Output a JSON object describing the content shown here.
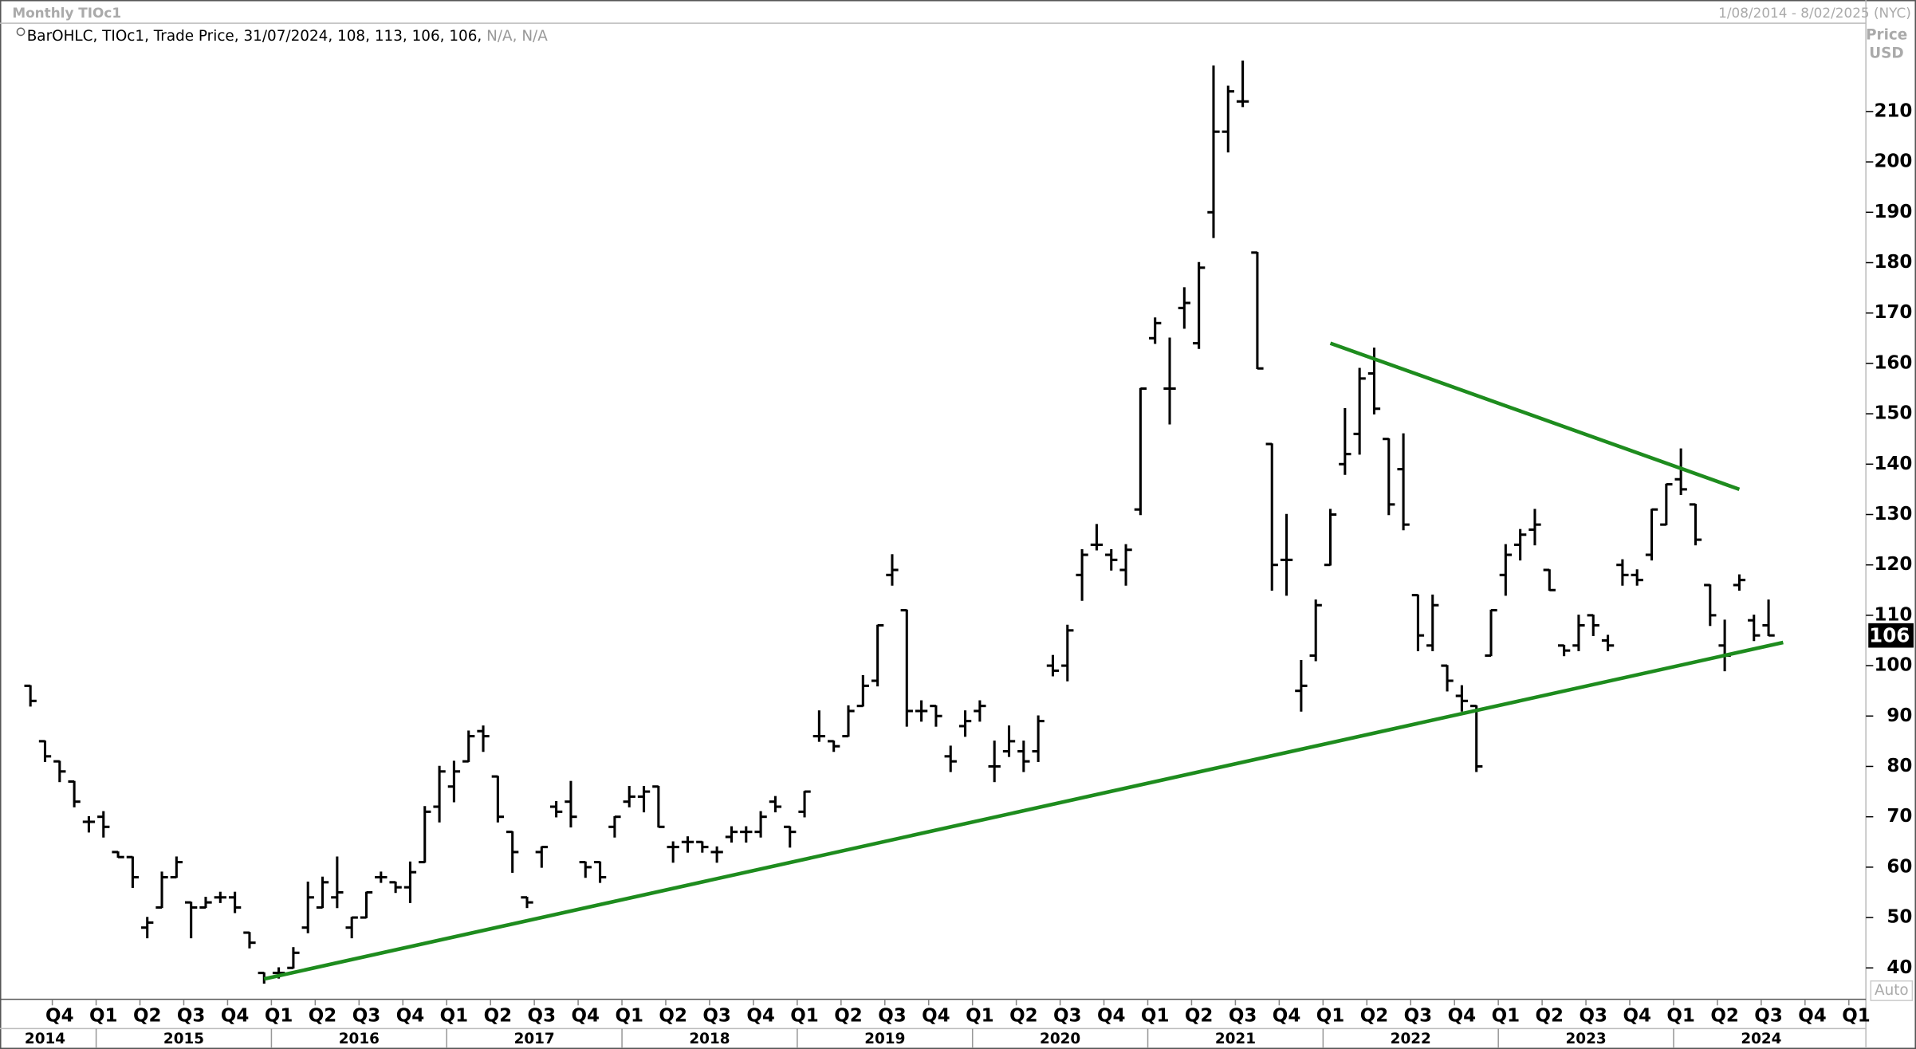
{
  "chart_data": {
    "type": "ohlc",
    "title": "Monthly TIOc1",
    "date_range": "1/08/2014 - 8/02/2025 (NYC)",
    "legend": {
      "items": [
        "BarOHLC",
        "TIOc1",
        "Trade Price",
        "31/07/2024"
      ],
      "separator": ", ",
      "tail": [
        "N/A",
        "N/A"
      ]
    },
    "y_axis_label": [
      "Price",
      "USD"
    ],
    "scale_mode": "Auto",
    "x": [
      "2014-08",
      "2014-09",
      "2014-10",
      "2014-11",
      "2014-12",
      "2015-01",
      "2015-02",
      "2015-03",
      "2015-04",
      "2015-05",
      "2015-06",
      "2015-07",
      "2015-08",
      "2015-09",
      "2015-10",
      "2015-11",
      "2015-12",
      "2016-01",
      "2016-02",
      "2016-03",
      "2016-04",
      "2016-05",
      "2016-06",
      "2016-07",
      "2016-08",
      "2016-09",
      "2016-10",
      "2016-11",
      "2016-12",
      "2017-01",
      "2017-02",
      "2017-03",
      "2017-04",
      "2017-05",
      "2017-06",
      "2017-07",
      "2017-08",
      "2017-09",
      "2017-10",
      "2017-11",
      "2017-12",
      "2018-01",
      "2018-02",
      "2018-03",
      "2018-04",
      "2018-05",
      "2018-06",
      "2018-07",
      "2018-08",
      "2018-09",
      "2018-10",
      "2018-11",
      "2018-12",
      "2019-01",
      "2019-02",
      "2019-03",
      "2019-04",
      "2019-05",
      "2019-06",
      "2019-07",
      "2019-08",
      "2019-09",
      "2019-10",
      "2019-11",
      "2019-12",
      "2020-01",
      "2020-02",
      "2020-03",
      "2020-04",
      "2020-05",
      "2020-06",
      "2020-07",
      "2020-08",
      "2020-09",
      "2020-10",
      "2020-11",
      "2020-12",
      "2021-01",
      "2021-02",
      "2021-03",
      "2021-04",
      "2021-05",
      "2021-06",
      "2021-07",
      "2021-08",
      "2021-09",
      "2021-10",
      "2021-11",
      "2021-12",
      "2022-01",
      "2022-02",
      "2022-03",
      "2022-04",
      "2022-05",
      "2022-06",
      "2022-07",
      "2022-08",
      "2022-09",
      "2022-10",
      "2022-11",
      "2022-12",
      "2023-01",
      "2023-02",
      "2023-03",
      "2023-04",
      "2023-05",
      "2023-06",
      "2023-07",
      "2023-08",
      "2023-09",
      "2023-10",
      "2023-11",
      "2023-12",
      "2024-01",
      "2024-02",
      "2024-03",
      "2024-04",
      "2024-05",
      "2024-06",
      "2024-07"
    ],
    "series": [
      {
        "name": "TIOc1",
        "color": "#000000",
        "open": [
          96,
          85,
          81,
          77,
          69,
          70,
          63,
          62,
          48,
          52,
          58,
          53,
          52,
          54,
          54,
          47,
          39,
          39,
          40,
          48,
          52,
          54,
          48,
          50,
          58,
          57,
          56,
          61,
          72,
          76,
          81,
          87,
          78,
          67,
          54,
          63,
          72,
          73,
          61,
          61,
          68,
          73,
          74,
          76,
          64,
          65,
          65,
          63,
          66,
          67,
          67,
          73,
          68,
          71,
          86,
          85,
          86,
          92,
          97,
          118,
          111,
          91,
          92,
          82,
          88,
          91,
          80,
          83,
          83,
          83,
          100,
          100,
          118,
          124,
          122,
          119,
          131,
          165,
          155,
          171,
          164,
          190,
          206,
          212,
          182,
          144,
          121,
          95,
          102,
          120,
          140,
          146,
          158,
          145,
          139,
          114,
          104,
          100,
          94,
          92,
          102,
          118,
          124,
          127,
          119,
          104,
          104,
          110,
          105,
          120,
          118,
          122,
          128,
          137,
          132,
          116,
          104,
          116,
          109,
          108
        ],
        "high": [
          96,
          85,
          81,
          77,
          70,
          71,
          63,
          62,
          50,
          59,
          62,
          53,
          54,
          55,
          55,
          47,
          39,
          40,
          44,
          57,
          58,
          62,
          50,
          55,
          59,
          57,
          61,
          72,
          80,
          81,
          87,
          88,
          78,
          67,
          54,
          64,
          73,
          77,
          61,
          61,
          70,
          76,
          76,
          76,
          65,
          66,
          65,
          64,
          68,
          68,
          71,
          74,
          68,
          75,
          91,
          85,
          92,
          98,
          108,
          122,
          111,
          93,
          92,
          84,
          91,
          93,
          85,
          88,
          85,
          90,
          102,
          108,
          123,
          128,
          123,
          124,
          155,
          169,
          165,
          175,
          180,
          219,
          215,
          220,
          182,
          144,
          130,
          101,
          113,
          131,
          151,
          159,
          163,
          145,
          146,
          114,
          114,
          100,
          96,
          92,
          111,
          124,
          127,
          131,
          119,
          104,
          110,
          110,
          106,
          121,
          119,
          131,
          136,
          143,
          132,
          116,
          109,
          118,
          110,
          113
        ],
        "low": [
          92,
          81,
          77,
          72,
          67,
          66,
          62,
          56,
          46,
          52,
          58,
          46,
          52,
          53,
          51,
          44,
          37,
          38,
          40,
          47,
          52,
          52,
          46,
          50,
          57,
          55,
          53,
          61,
          69,
          73,
          81,
          83,
          69,
          59,
          52,
          60,
          70,
          68,
          58,
          57,
          66,
          72,
          71,
          68,
          61,
          63,
          63,
          61,
          65,
          65,
          66,
          71,
          64,
          70,
          85,
          83,
          86,
          92,
          96,
          116,
          88,
          89,
          88,
          79,
          86,
          89,
          77,
          82,
          79,
          81,
          98,
          97,
          113,
          123,
          119,
          116,
          130,
          164,
          148,
          167,
          163,
          185,
          202,
          211,
          159,
          115,
          114,
          91,
          101,
          120,
          138,
          142,
          150,
          130,
          127,
          103,
          103,
          95,
          91,
          79,
          102,
          114,
          121,
          124,
          115,
          102,
          103,
          106,
          103,
          116,
          116,
          121,
          128,
          134,
          124,
          108,
          99,
          115,
          105,
          106
        ],
        "close": [
          93,
          82,
          79,
          73,
          69,
          68,
          62,
          58,
          49,
          58,
          61,
          52,
          53,
          54,
          52,
          45,
          38,
          39,
          43,
          54,
          57,
          55,
          50,
          55,
          58,
          56,
          59,
          71,
          79,
          79,
          86,
          86,
          70,
          63,
          53,
          64,
          71,
          70,
          60,
          58,
          70,
          74,
          75,
          68,
          64,
          65,
          64,
          63,
          67,
          67,
          70,
          72,
          67,
          75,
          86,
          84,
          91,
          96,
          108,
          119,
          91,
          91,
          90,
          81,
          89,
          92,
          80,
          85,
          81,
          89,
          99,
          107,
          122,
          124,
          121,
          123,
          155,
          168,
          155,
          172,
          179,
          206,
          214,
          212,
          159,
          120,
          121,
          96,
          112,
          130,
          142,
          157,
          151,
          132,
          128,
          106,
          112,
          97,
          93,
          80,
          111,
          122,
          126,
          128,
          115,
          103,
          108,
          108,
          104,
          118,
          117,
          131,
          136,
          135,
          125,
          110,
          102,
          117,
          106,
          106
        ]
      }
    ],
    "ylim": [
      34.5,
      228.5
    ],
    "yticks": [
      40,
      50,
      60,
      70,
      80,
      90,
      100,
      110,
      120,
      130,
      140,
      150,
      160,
      170,
      180,
      190,
      200,
      210
    ],
    "xlim": [
      "2014-06",
      "2025-02"
    ],
    "xticks": [
      {
        "value": "2014-10",
        "label": "Q4"
      },
      {
        "value": "2015-01",
        "label": "Q1"
      },
      {
        "value": "2015-04",
        "label": "Q2"
      },
      {
        "value": "2015-07",
        "label": "Q3"
      },
      {
        "value": "2015-10",
        "label": "Q4"
      },
      {
        "value": "2016-01",
        "label": "Q1"
      },
      {
        "value": "2016-04",
        "label": "Q2"
      },
      {
        "value": "2016-07",
        "label": "Q3"
      },
      {
        "value": "2016-10",
        "label": "Q4"
      },
      {
        "value": "2017-01",
        "label": "Q1"
      },
      {
        "value": "2017-04",
        "label": "Q2"
      },
      {
        "value": "2017-07",
        "label": "Q3"
      },
      {
        "value": "2017-10",
        "label": "Q4"
      },
      {
        "value": "2018-01",
        "label": "Q1"
      },
      {
        "value": "2018-04",
        "label": "Q2"
      },
      {
        "value": "2018-07",
        "label": "Q3"
      },
      {
        "value": "2018-10",
        "label": "Q4"
      },
      {
        "value": "2019-01",
        "label": "Q1"
      },
      {
        "value": "2019-04",
        "label": "Q2"
      },
      {
        "value": "2019-07",
        "label": "Q3"
      },
      {
        "value": "2019-10",
        "label": "Q4"
      },
      {
        "value": "2020-01",
        "label": "Q1"
      },
      {
        "value": "2020-04",
        "label": "Q2"
      },
      {
        "value": "2020-07",
        "label": "Q3"
      },
      {
        "value": "2020-10",
        "label": "Q4"
      },
      {
        "value": "2021-01",
        "label": "Q1"
      },
      {
        "value": "2021-04",
        "label": "Q2"
      },
      {
        "value": "2021-07",
        "label": "Q3"
      },
      {
        "value": "2021-10",
        "label": "Q4"
      },
      {
        "value": "2022-01",
        "label": "Q1"
      },
      {
        "value": "2022-04",
        "label": "Q2"
      },
      {
        "value": "2022-07",
        "label": "Q3"
      },
      {
        "value": "2022-10",
        "label": "Q4"
      },
      {
        "value": "2023-01",
        "label": "Q1"
      },
      {
        "value": "2023-04",
        "label": "Q2"
      },
      {
        "value": "2023-07",
        "label": "Q3"
      },
      {
        "value": "2023-10",
        "label": "Q4"
      },
      {
        "value": "2024-01",
        "label": "Q1"
      },
      {
        "value": "2024-04",
        "label": "Q2"
      },
      {
        "value": "2024-07",
        "label": "Q3"
      },
      {
        "value": "2024-10",
        "label": "Q4"
      },
      {
        "value": "2025-01",
        "label": "Q1"
      }
    ],
    "years": [
      "2014",
      "2015",
      "2016",
      "2017",
      "2018",
      "2019",
      "2020",
      "2021",
      "2022",
      "2023",
      "2024"
    ],
    "trendlines": [
      {
        "color": "#1e8c1e",
        "x": [
          "2015-12",
          "2024-08"
        ],
        "y": [
          37.8,
          104.6
        ]
      },
      {
        "color": "#1e8c1e",
        "x": [
          "2022-01",
          "2024-05"
        ],
        "y": [
          164,
          135
        ]
      }
    ]
  }
}
